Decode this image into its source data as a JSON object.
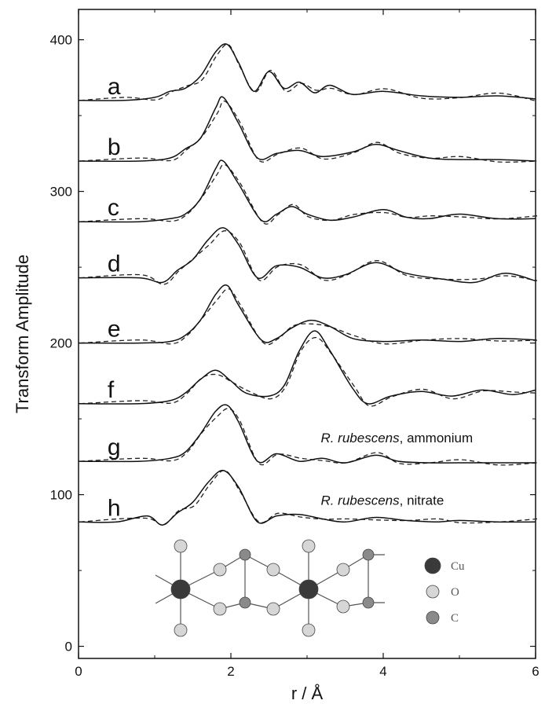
{
  "chart_data": {
    "type": "line",
    "xlabel": "r / Å",
    "ylabel": "Transform Amplitude",
    "xlim": [
      0,
      6
    ],
    "ylim": [
      -8,
      420
    ],
    "x_ticks": [
      "0",
      "2",
      "4",
      "6"
    ],
    "y_ticks": [
      "0",
      "100",
      "200",
      "300",
      "400"
    ],
    "grid": false,
    "line_styles": {
      "experimental": "solid",
      "fit": "dashed"
    },
    "series": [
      {
        "label": "a",
        "offset": 360,
        "x": [
          0,
          0.6,
          1.0,
          1.2,
          1.4,
          1.6,
          1.8,
          1.95,
          2.1,
          2.3,
          2.5,
          2.7,
          2.9,
          3.1,
          3.3,
          3.6,
          4.0,
          4.5,
          5.0,
          5.5,
          6.0
        ],
        "y": [
          360,
          360,
          362,
          366,
          368,
          376,
          392,
          397,
          385,
          366,
          379,
          368,
          372,
          365,
          370,
          364,
          366,
          363,
          362,
          363,
          361
        ]
      },
      {
        "label": "b",
        "offset": 320,
        "x": [
          0,
          0.8,
          1.2,
          1.4,
          1.6,
          1.8,
          1.9,
          2.1,
          2.35,
          2.6,
          2.9,
          3.2,
          3.6,
          3.9,
          4.2,
          4.6,
          5.0,
          5.5,
          6.0
        ],
        "y": [
          320,
          320,
          322,
          328,
          335,
          355,
          362,
          345,
          322,
          325,
          327,
          323,
          326,
          331,
          327,
          322,
          321,
          321,
          320
        ]
      },
      {
        "label": "c",
        "offset": 280,
        "x": [
          0,
          0.8,
          1.2,
          1.4,
          1.6,
          1.8,
          1.9,
          2.1,
          2.4,
          2.6,
          2.8,
          3.0,
          3.3,
          3.6,
          4.0,
          4.3,
          4.6,
          5.0,
          5.5,
          6.0
        ],
        "y": [
          280,
          280,
          282,
          285,
          295,
          315,
          320,
          305,
          281,
          285,
          290,
          285,
          281,
          283,
          288,
          283,
          282,
          285,
          282,
          282
        ]
      },
      {
        "label": "d",
        "offset": 243,
        "x": [
          0,
          0.8,
          1.1,
          1.3,
          1.5,
          1.7,
          1.9,
          2.1,
          2.35,
          2.6,
          2.9,
          3.2,
          3.5,
          3.9,
          4.3,
          4.8,
          5.2,
          5.6,
          6.0
        ],
        "y": [
          243,
          243,
          240,
          248,
          255,
          268,
          276,
          265,
          243,
          251,
          250,
          243,
          245,
          253,
          246,
          242,
          240,
          246,
          241
        ]
      },
      {
        "label": "e",
        "offset": 200,
        "x": [
          0,
          0.8,
          1.2,
          1.4,
          1.6,
          1.8,
          1.95,
          2.1,
          2.4,
          2.6,
          2.8,
          3.05,
          3.3,
          3.6,
          4.0,
          4.5,
          5.0,
          5.5,
          6.0
        ],
        "y": [
          200,
          200,
          201,
          205,
          215,
          232,
          238,
          225,
          202,
          203,
          210,
          215,
          211,
          203,
          201,
          202,
          201,
          203,
          202
        ]
      },
      {
        "label": "f",
        "offset": 160,
        "x": [
          0,
          0.8,
          1.2,
          1.4,
          1.6,
          1.8,
          2.0,
          2.2,
          2.5,
          2.7,
          2.9,
          3.1,
          3.3,
          3.6,
          3.8,
          4.1,
          4.5,
          4.9,
          5.3,
          5.7,
          6.0
        ],
        "y": [
          160,
          160,
          162,
          167,
          176,
          182,
          175,
          167,
          165,
          172,
          195,
          208,
          195,
          170,
          160,
          165,
          168,
          165,
          169,
          166,
          169
        ]
      },
      {
        "label": "g",
        "offset": 122,
        "x": [
          0,
          0.8,
          1.2,
          1.4,
          1.6,
          1.8,
          1.95,
          2.1,
          2.35,
          2.6,
          2.9,
          3.2,
          3.5,
          3.9,
          4.2,
          4.6,
          5.0,
          5.5,
          6.0
        ],
        "y": [
          122,
          122,
          124,
          128,
          140,
          155,
          159,
          148,
          122,
          127,
          122,
          124,
          121,
          126,
          122,
          121,
          121,
          121,
          121
        ]
      },
      {
        "label": "h",
        "offset": 82,
        "x": [
          0,
          0.5,
          0.9,
          1.1,
          1.3,
          1.5,
          1.7,
          1.9,
          2.1,
          2.35,
          2.6,
          2.9,
          3.2,
          3.5,
          3.9,
          4.3,
          4.7,
          5.0,
          5.5,
          6.0
        ],
        "y": [
          82,
          82,
          86,
          80,
          88,
          95,
          108,
          116,
          105,
          82,
          86,
          87,
          84,
          82,
          85,
          83,
          82,
          83,
          82,
          82
        ]
      }
    ],
    "annotations": [
      {
        "text_italic": "R. rubescens",
        "text_rest": ", ammonium",
        "near_series": "g"
      },
      {
        "text_italic": "R. rubescens",
        "text_rest": ", nitrate",
        "near_series": "h"
      }
    ],
    "structure_legend": [
      {
        "label": "Cu",
        "color": "#3a3a3a"
      },
      {
        "label": "O",
        "color": "#d6d6d6"
      },
      {
        "label": "C",
        "color": "#8a8a8a"
      }
    ]
  }
}
